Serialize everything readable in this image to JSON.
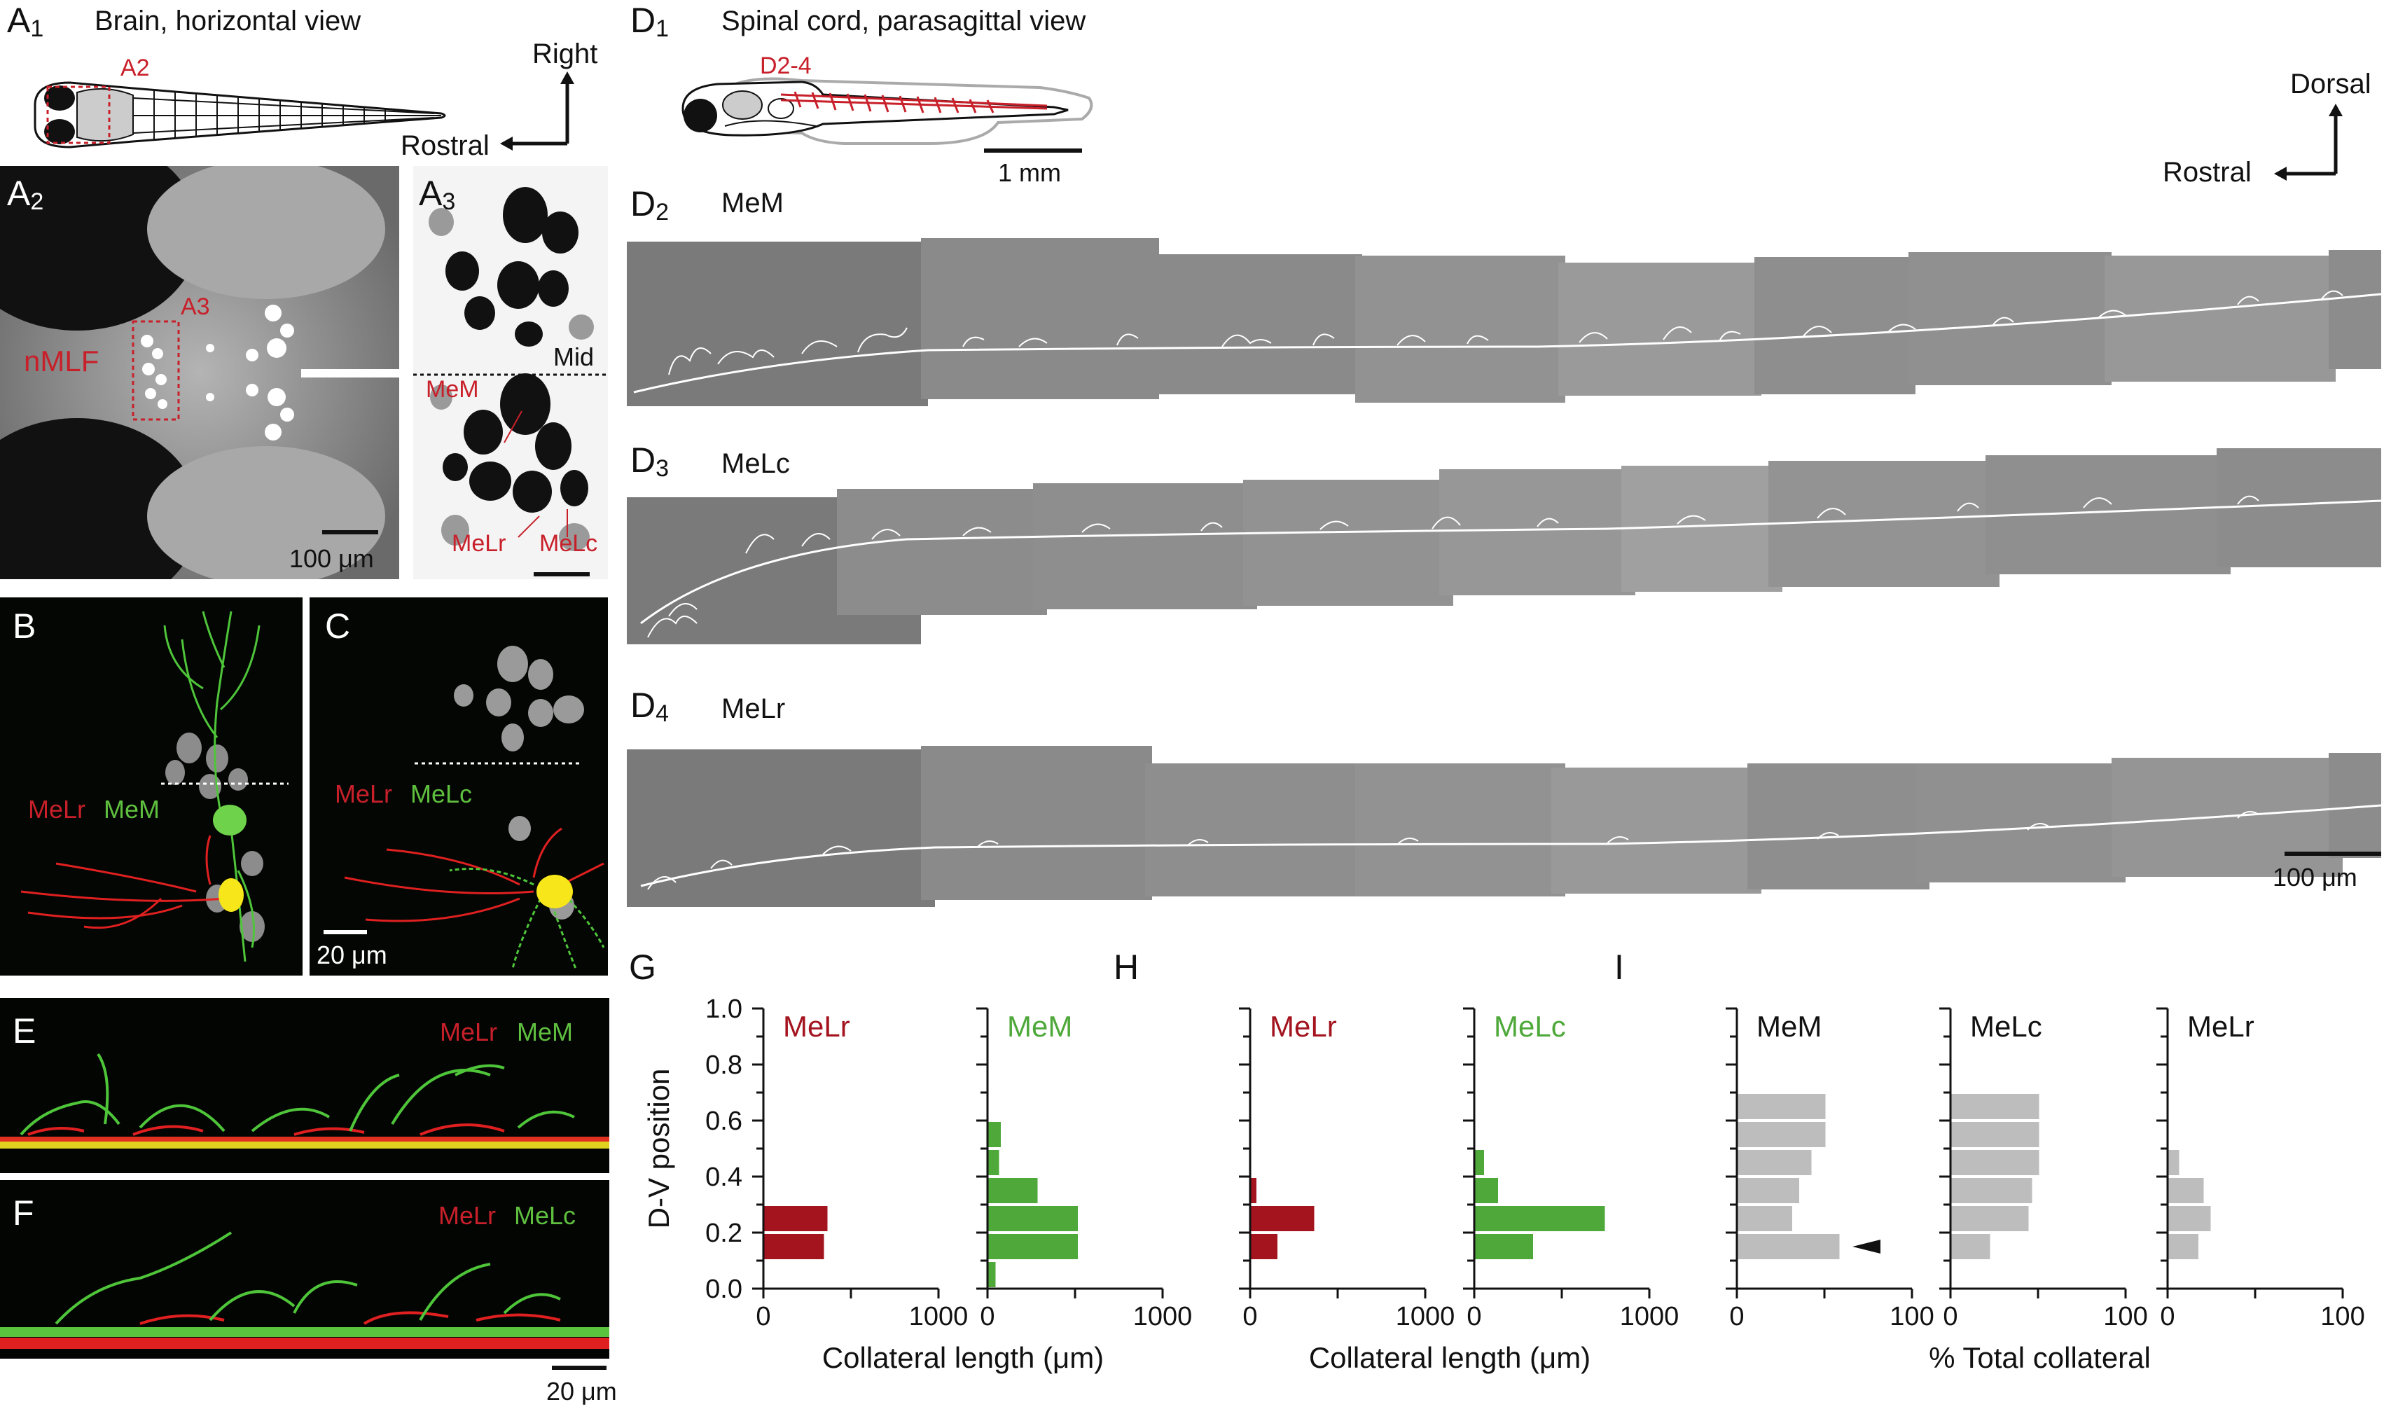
{
  "panelA1": {
    "label": "A",
    "sub": "1",
    "title": "Brain, horizontal view",
    "inset_label": "A2",
    "axis_right": "Right",
    "axis_rostral": "Rostral"
  },
  "panelA2": {
    "label": "A",
    "sub": "2",
    "region": "nMLF",
    "inset_label": "A3",
    "scalebar": "100 μm"
  },
  "panelA3": {
    "label": "A",
    "sub": "3",
    "midline": "Mid",
    "cell_mem": "MeM",
    "cell_melr": "MeLr",
    "cell_melc": "MeLc"
  },
  "panelB": {
    "label": "B",
    "red_name": "MeLr",
    "green_name": "MeM"
  },
  "panelC": {
    "label": "C",
    "red_name": "MeLr",
    "green_name": "MeLc",
    "scalebar": "20 μm"
  },
  "panelD1": {
    "label": "D",
    "sub": "1",
    "title": "Spinal cord, parasagittal view",
    "inset_label": "D2-4",
    "scalebar": "1 mm",
    "axis_dorsal": "Dorsal",
    "axis_rostral": "Rostral"
  },
  "panelD2": {
    "label": "D",
    "sub": "2",
    "name": "MeM"
  },
  "panelD3": {
    "label": "D",
    "sub": "3",
    "name": "MeLc"
  },
  "panelD4": {
    "label": "D",
    "sub": "4",
    "name": "MeLr",
    "scalebar": "100 μm"
  },
  "panelE": {
    "label": "E",
    "red_name": "MeLr",
    "green_name": "MeM"
  },
  "panelF": {
    "label": "F",
    "red_name": "MeLr",
    "green_name": "MeLc",
    "scalebar": "20 μm"
  },
  "colors": {
    "red": "#c8202a",
    "dark_red": "#a3141f",
    "green": "#4ea83a",
    "gray_bar": "#bdbdbd"
  },
  "chart_data": [
    {
      "panel": "G",
      "type": "bar",
      "orientation": "horizontal",
      "ylabel": "D-V position",
      "xlabel": "Collateral length (μm)",
      "yticks": [
        "0.0",
        "0.2",
        "0.4",
        "0.6",
        "0.8",
        "1.0"
      ],
      "ylim": [
        0,
        1
      ],
      "bin_centers": [
        0.05,
        0.15,
        0.25,
        0.35,
        0.45,
        0.55,
        0.65,
        0.75,
        0.85,
        0.95
      ],
      "subplots": [
        {
          "name": "MeLr",
          "color": "#a3141f",
          "xticks": [
            "0",
            "1000"
          ],
          "xlim": [
            0,
            1000
          ],
          "values": [
            0,
            340,
            360,
            0,
            0,
            0,
            0,
            0,
            0,
            0
          ]
        },
        {
          "name": "MeM",
          "color": "#4ea83a",
          "xticks": [
            "0",
            "1000"
          ],
          "xlim": [
            0,
            1000
          ],
          "values": [
            40,
            510,
            510,
            280,
            60,
            70,
            0,
            0,
            0,
            0
          ]
        }
      ]
    },
    {
      "panel": "H",
      "type": "bar",
      "orientation": "horizontal",
      "xlabel": "Collateral length (μm)",
      "ylim": [
        0,
        1
      ],
      "bin_centers": [
        0.05,
        0.15,
        0.25,
        0.35,
        0.45,
        0.55,
        0.65,
        0.75,
        0.85,
        0.95
      ],
      "subplots": [
        {
          "name": "MeLr",
          "color": "#a3141f",
          "xticks": [
            "0",
            "1000"
          ],
          "xlim": [
            0,
            1000
          ],
          "values": [
            0,
            150,
            360,
            30,
            0,
            0,
            0,
            0,
            0,
            0
          ]
        },
        {
          "name": "MeLc",
          "color": "#4ea83a",
          "xticks": [
            "0",
            "1000"
          ],
          "xlim": [
            0,
            1000
          ],
          "values": [
            0,
            330,
            740,
            130,
            50,
            0,
            0,
            0,
            0,
            0
          ]
        }
      ]
    },
    {
      "panel": "I",
      "type": "bar",
      "orientation": "horizontal",
      "xlabel": "% Total collateral",
      "ylim": [
        0,
        1
      ],
      "bin_centers": [
        0.05,
        0.15,
        0.25,
        0.35,
        0.45,
        0.55,
        0.65,
        0.75,
        0.85,
        0.95
      ],
      "subplots": [
        {
          "name": "MeM",
          "color": "#bdbdbd",
          "xticks": [
            "0",
            "100"
          ],
          "xlim": [
            0,
            100
          ],
          "values": [
            0,
            58,
            31,
            35,
            42,
            50,
            50,
            0,
            0,
            0
          ],
          "arrowhead_bin": 0.15
        },
        {
          "name": "MeLc",
          "color": "#bdbdbd",
          "xticks": [
            "0",
            "100"
          ],
          "xlim": [
            0,
            100
          ],
          "values": [
            0,
            22,
            44,
            46,
            50,
            50,
            50,
            0,
            0,
            0
          ]
        },
        {
          "name": "MeLr",
          "color": "#bdbdbd",
          "xticks": [
            "0",
            "100"
          ],
          "xlim": [
            0,
            100
          ],
          "values": [
            0,
            17,
            24,
            20,
            6,
            0,
            0,
            0,
            0,
            0
          ]
        }
      ]
    }
  ]
}
